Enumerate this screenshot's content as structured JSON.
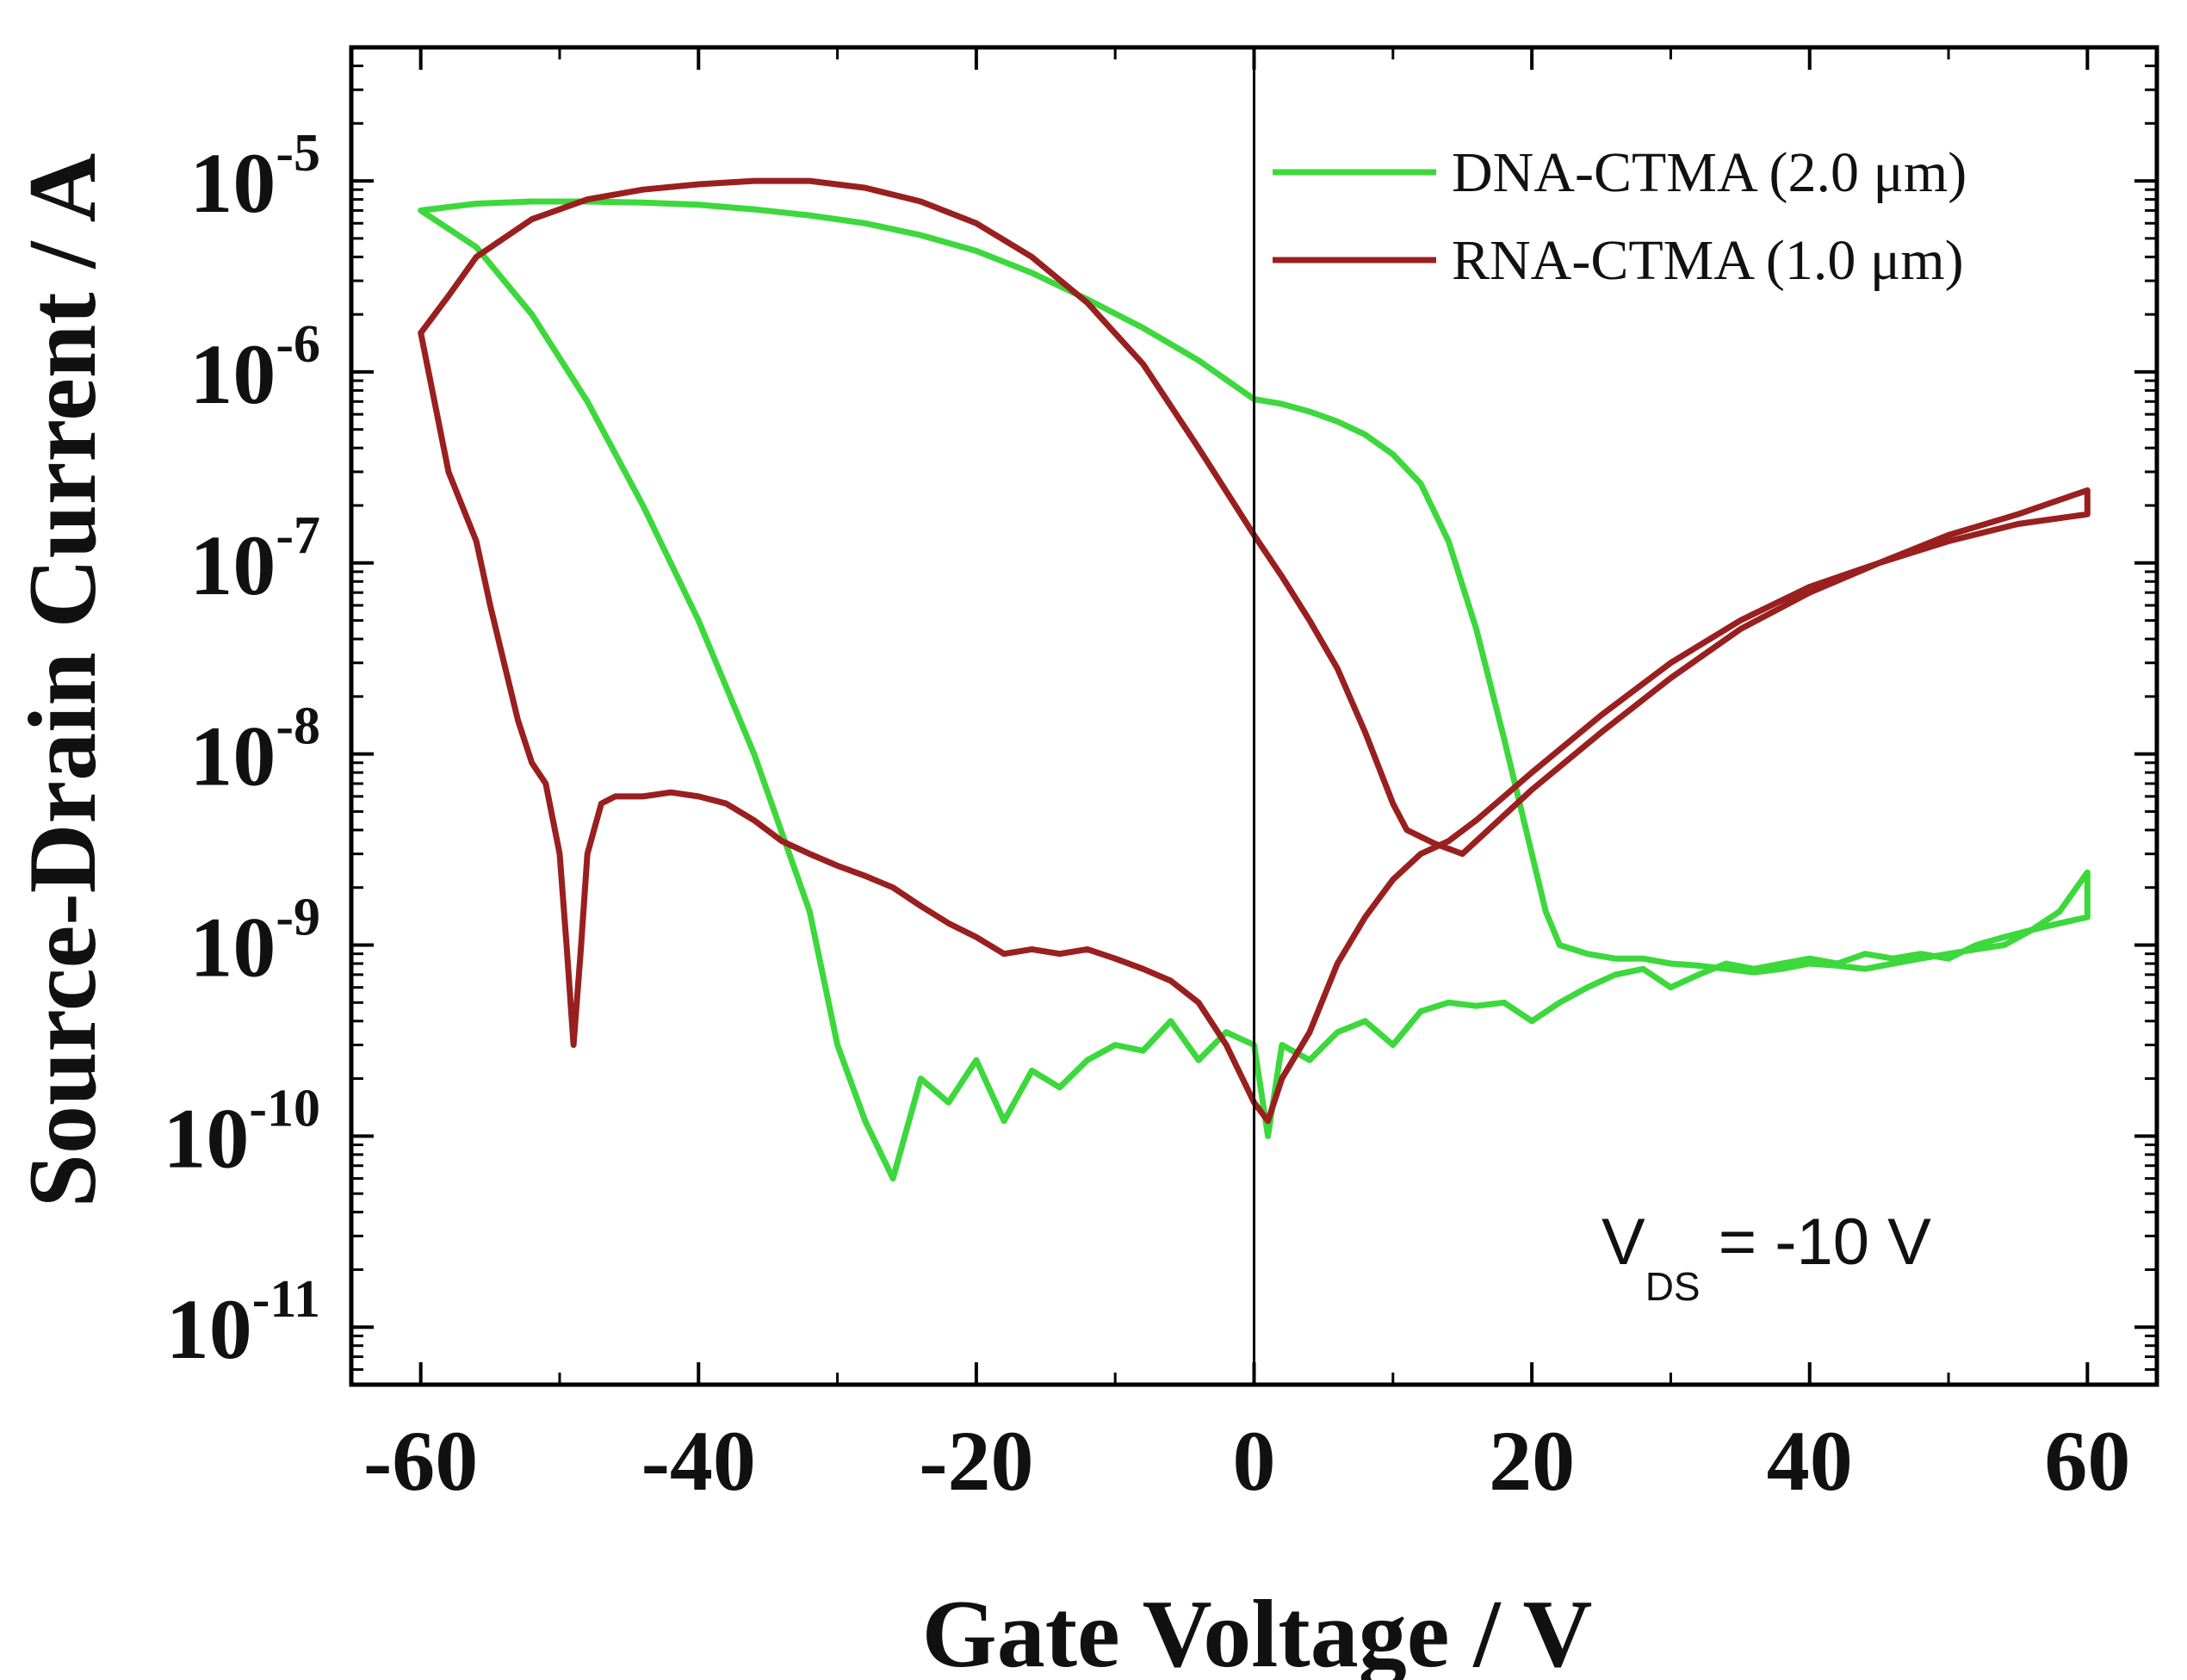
{
  "chart_data": {
    "type": "line",
    "title": "",
    "xlabel": "Gate Voltage / V",
    "ylabel": "Source-Drain Current / A",
    "yscale": "log",
    "xlim": [
      -65,
      65
    ],
    "ylim": [
      5e-12,
      5e-05
    ],
    "x_ticks": [
      -60,
      -40,
      -20,
      0,
      20,
      40,
      60
    ],
    "x_tick_labels": [
      "-60",
      "-40",
      "-20",
      "0",
      "20",
      "40",
      "60"
    ],
    "y_tick_labels": [
      {
        "base": "10",
        "exp": "-11",
        "value": 1e-11
      },
      {
        "base": "10",
        "exp": "-10",
        "value": 1e-10
      },
      {
        "base": "10",
        "exp": "-9",
        "value": 1e-09
      },
      {
        "base": "10",
        "exp": "-8",
        "value": 1e-08
      },
      {
        "base": "10",
        "exp": "-7",
        "value": 1e-07
      },
      {
        "base": "10",
        "exp": "-6",
        "value": 1e-06
      },
      {
        "base": "10",
        "exp": "-5",
        "value": 1e-05
      }
    ],
    "reference_line_x": 0,
    "annotation": {
      "main": "V",
      "sub": "DS",
      "rest": " = -10 V"
    },
    "legend_position": "top-right",
    "series": [
      {
        "name": "DNA-CTMA (2.0 μm)",
        "color": "#3cd83c",
        "x": [
          -60,
          -56,
          -52,
          -48,
          -44,
          -40,
          -36,
          -32,
          -30,
          -28,
          -26,
          -24,
          -22,
          -20,
          -18,
          -16,
          -14,
          -12,
          -10,
          -8,
          -6,
          -4,
          -2,
          0,
          1,
          2,
          4,
          6,
          8,
          10,
          12,
          14,
          16,
          18,
          20,
          22,
          24,
          26,
          28,
          30,
          32,
          34,
          36,
          38,
          40,
          42,
          44,
          46,
          48,
          50,
          52,
          54,
          56,
          58,
          60,
          60,
          58,
          56,
          54,
          52,
          50,
          48,
          46,
          44,
          42,
          40,
          38,
          36,
          34,
          32,
          30,
          28,
          26,
          24,
          22,
          21,
          20,
          18,
          16,
          14,
          12,
          10,
          8,
          6,
          4,
          2,
          0,
          -4,
          -8,
          -12,
          -16,
          -20,
          -24,
          -28,
          -32,
          -36,
          -40,
          -44,
          -48,
          -52,
          -56,
          -60
        ],
        "y": [
          7e-06,
          4.5e-06,
          2e-06,
          7e-07,
          2e-07,
          5e-08,
          1e-08,
          1.5e-09,
          3e-10,
          1.2e-10,
          6e-11,
          2e-10,
          1.5e-10,
          2.5e-10,
          1.2e-10,
          2.2e-10,
          1.8e-10,
          2.5e-10,
          3e-10,
          2.8e-10,
          4e-10,
          2.5e-10,
          3.5e-10,
          3e-10,
          1e-10,
          3e-10,
          2.5e-10,
          3.5e-10,
          4e-10,
          3e-10,
          4.5e-10,
          5e-10,
          4.8e-10,
          5e-10,
          4e-10,
          5e-10,
          6e-10,
          7e-10,
          7.5e-10,
          6e-10,
          7e-10,
          8e-10,
          7.5e-10,
          8e-10,
          8.5e-10,
          8e-10,
          9e-10,
          8.5e-10,
          9e-10,
          8.5e-10,
          1e-09,
          1.1e-09,
          1.2e-09,
          1.3e-09,
          1.4e-09,
          2.4e-09,
          1.5e-09,
          1.2e-09,
          1e-09,
          9.5e-10,
          9e-10,
          8.5e-10,
          8e-10,
          7.5e-10,
          7.8e-10,
          8e-10,
          7.5e-10,
          7.2e-10,
          7.5e-10,
          7.8e-10,
          8e-10,
          8.5e-10,
          8.5e-10,
          9e-10,
          1e-09,
          1.5e-09,
          3e-09,
          1.2e-08,
          4.5e-08,
          1.3e-07,
          2.6e-07,
          3.7e-07,
          4.7e-07,
          5.5e-07,
          6.2e-07,
          6.8e-07,
          7.2e-07,
          1.15e-06,
          1.7e-06,
          2.4e-06,
          3.3e-06,
          4.3e-06,
          5.2e-06,
          6e-06,
          6.6e-06,
          7.1e-06,
          7.5e-06,
          7.7e-06,
          7.8e-06,
          7.8e-06,
          7.6e-06,
          7e-06
        ]
      },
      {
        "name": "RNA-CTMA (1.0 μm)",
        "color": "#9a1f1f",
        "x": [
          -60,
          -58,
          -56,
          -55,
          -54,
          -53,
          -52,
          -51,
          -50,
          -49.5,
          -49,
          -48.5,
          -48,
          -47,
          -46,
          -44,
          -42,
          -40,
          -38,
          -36,
          -34,
          -32,
          -30,
          -28,
          -26,
          -24,
          -22,
          -20,
          -18,
          -16,
          -14,
          -12,
          -10,
          -8,
          -6,
          -4,
          -2,
          0,
          1,
          2,
          4,
          6,
          8,
          10,
          12,
          14,
          16,
          18,
          20,
          25,
          30,
          35,
          40,
          45,
          50,
          55,
          60,
          60,
          55,
          50,
          45,
          40,
          35,
          30,
          25,
          20,
          15,
          13,
          11,
          10,
          8,
          6,
          4,
          2,
          0,
          -4,
          -8,
          -12,
          -16,
          -20,
          -24,
          -28,
          -32,
          -36,
          -40,
          -44,
          -48,
          -52,
          -56,
          -58,
          -60
        ],
        "y": [
          1.6e-06,
          3e-07,
          1.3e-07,
          6e-08,
          3e-08,
          1.5e-08,
          9e-09,
          7e-09,
          3e-09,
          1e-09,
          3e-10,
          9e-10,
          3e-09,
          5.5e-09,
          6e-09,
          6e-09,
          6.3e-09,
          6e-09,
          5.5e-09,
          4.5e-09,
          3.5e-09,
          3e-09,
          2.6e-09,
          2.3e-09,
          2e-09,
          1.6e-09,
          1.3e-09,
          1.1e-09,
          9e-10,
          9.5e-10,
          9e-10,
          9.5e-10,
          8.5e-10,
          7.5e-10,
          6.5e-10,
          5e-10,
          3e-10,
          1.5e-10,
          1.2e-10,
          2e-10,
          3.5e-10,
          8e-10,
          1.4e-09,
          2.2e-09,
          3e-09,
          3.5e-09,
          4.5e-09,
          6e-09,
          8e-09,
          1.6e-08,
          3e-08,
          5e-08,
          7.5e-08,
          1e-07,
          1.4e-07,
          1.8e-07,
          2.4e-07,
          1.8e-07,
          1.6e-07,
          1.3e-07,
          1e-07,
          7e-08,
          4.5e-08,
          2.5e-08,
          1.3e-08,
          6.5e-09,
          3e-09,
          3.4e-09,
          4e-09,
          5.5e-09,
          1.3e-08,
          2.8e-08,
          5e-08,
          8.5e-08,
          1.4e-07,
          4e-07,
          1.1e-06,
          2.3e-06,
          4e-06,
          6e-06,
          7.8e-06,
          9.2e-06,
          1e-05,
          1e-05,
          9.6e-06,
          9e-06,
          8e-06,
          6.3e-06,
          4e-06,
          2.5e-06,
          1.6e-06
        ]
      }
    ]
  }
}
